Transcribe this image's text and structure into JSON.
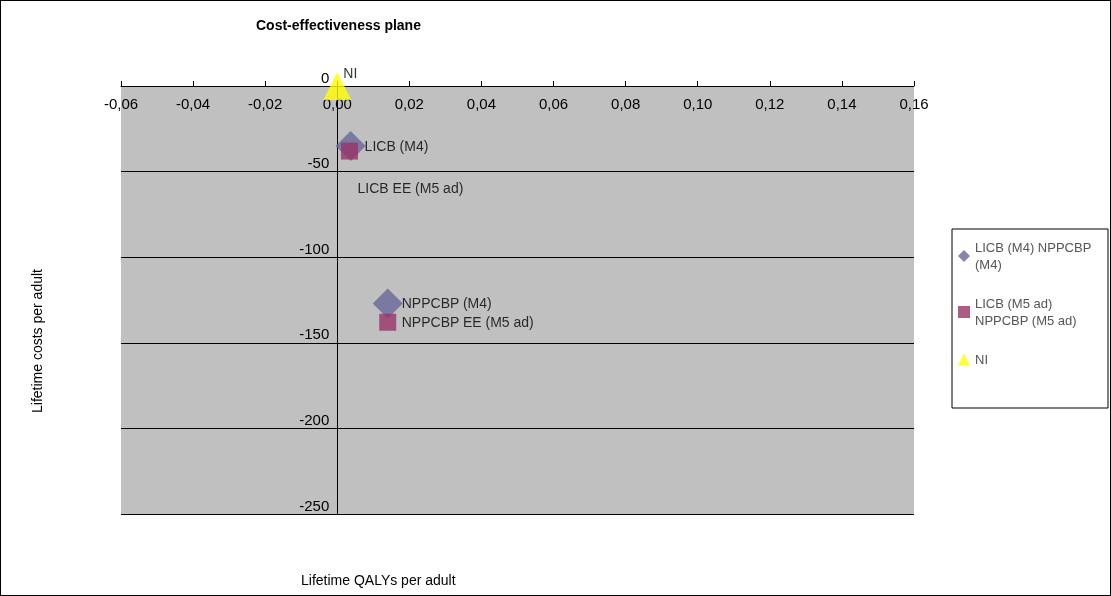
{
  "chart_data": {
    "type": "scatter",
    "title": "Cost-effectiveness plane",
    "xlabel": "Lifetime QALYs per adult",
    "ylabel": "Lifetime costs per adult",
    "series": [
      {
        "name": "LICB (M4) NPPCBP (M4)",
        "color": "#666699",
        "marker": "diamond",
        "x": [
          0.0037,
          0.014
        ],
        "values": [
          -35,
          -127
        ]
      },
      {
        "name": "LICB (M5 ad) NPPCBP (M5 ad)",
        "color": "#993366",
        "marker": "square",
        "x": [
          0.0034,
          0.014
        ],
        "values": [
          -38,
          -138
        ]
      },
      {
        "name": "NI",
        "color": "#ffff00",
        "marker": "triangle",
        "x": [
          0
        ],
        "values": [
          0
        ]
      }
    ],
    "annotations": [
      {
        "text": "NI",
        "x": 0,
        "y": 0
      },
      {
        "text": "LICB (M4)",
        "x": 0.0037,
        "y": -35
      },
      {
        "text": "LICB EE (M5 ad)",
        "x": 0.0034,
        "y": -38
      },
      {
        "text": "NPPCBP (M4)",
        "x": 0.014,
        "y": -127
      },
      {
        "text": "NPPCBP EE (M5 ad)",
        "x": 0.014,
        "y": -138
      }
    ],
    "xlim": [
      -0.06,
      0.16
    ],
    "xticks": [
      {
        "value": -0.06,
        "label": "-0,06"
      },
      {
        "value": -0.04,
        "label": "-0,04"
      },
      {
        "value": -0.02,
        "label": "-0,02"
      },
      {
        "value": 0,
        "label": "0,00"
      },
      {
        "value": 0.02,
        "label": "0,02"
      },
      {
        "value": 0.04,
        "label": "0,04"
      },
      {
        "value": 0.06,
        "label": "0,06"
      },
      {
        "value": 0.08,
        "label": "0,08"
      },
      {
        "value": 0.1,
        "label": "0,10"
      },
      {
        "value": 0.12,
        "label": "0,12"
      },
      {
        "value": 0.14,
        "label": "0,14"
      },
      {
        "value": 0.16,
        "label": "0,16"
      }
    ],
    "ylim": [
      -250,
      0
    ],
    "yticks": [
      -250,
      -200,
      -150,
      -100,
      -50,
      0
    ],
    "grid": "y",
    "legend": "right"
  }
}
